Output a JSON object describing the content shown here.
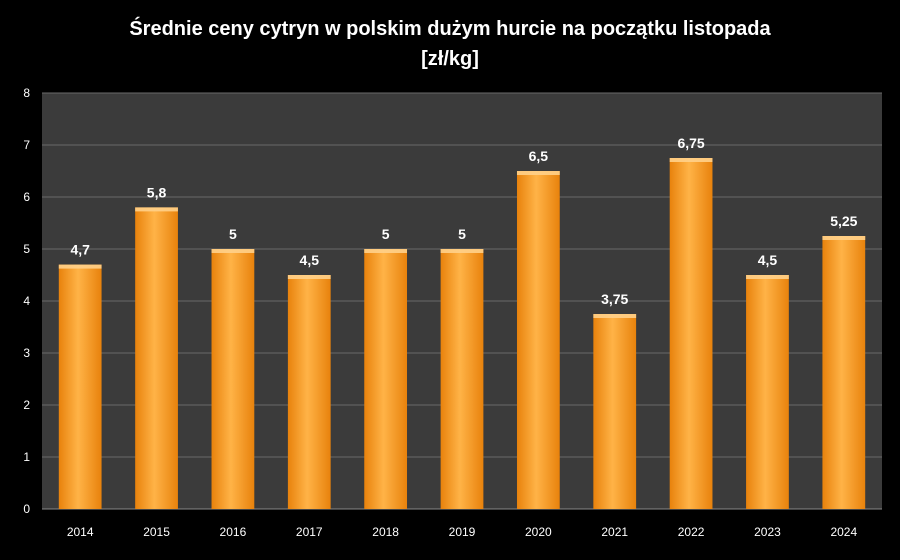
{
  "chart_data": {
    "type": "bar",
    "title": "Średnie ceny cytryn w polskim dużym hurcie na początku listopada",
    "subtitle": "[zł/kg]",
    "xlabel": "",
    "ylabel": "",
    "categories": [
      "2014",
      "2015",
      "2016",
      "2017",
      "2018",
      "2019",
      "2020",
      "2021",
      "2022",
      "2023",
      "2024"
    ],
    "values": [
      4.7,
      5.8,
      5,
      4.5,
      5,
      5,
      6.5,
      3.75,
      6.75,
      4.5,
      5.25
    ],
    "value_labels": [
      "4,7",
      "5,8",
      "5",
      "4,5",
      "5",
      "5",
      "6,5",
      "3,75",
      "6,75",
      "4,5",
      "5,25"
    ],
    "ylim": [
      0,
      8
    ],
    "yticks": [
      0,
      1,
      2,
      3,
      4,
      5,
      6,
      7,
      8
    ],
    "grid": true,
    "legend": "none",
    "colors": {
      "background": "#000000",
      "plot_area": "#3b3b3b",
      "gridline": "#6a6a6a",
      "bar_light": "#ffb347",
      "bar_dark": "#e8820c",
      "text": "#ffffff"
    }
  }
}
